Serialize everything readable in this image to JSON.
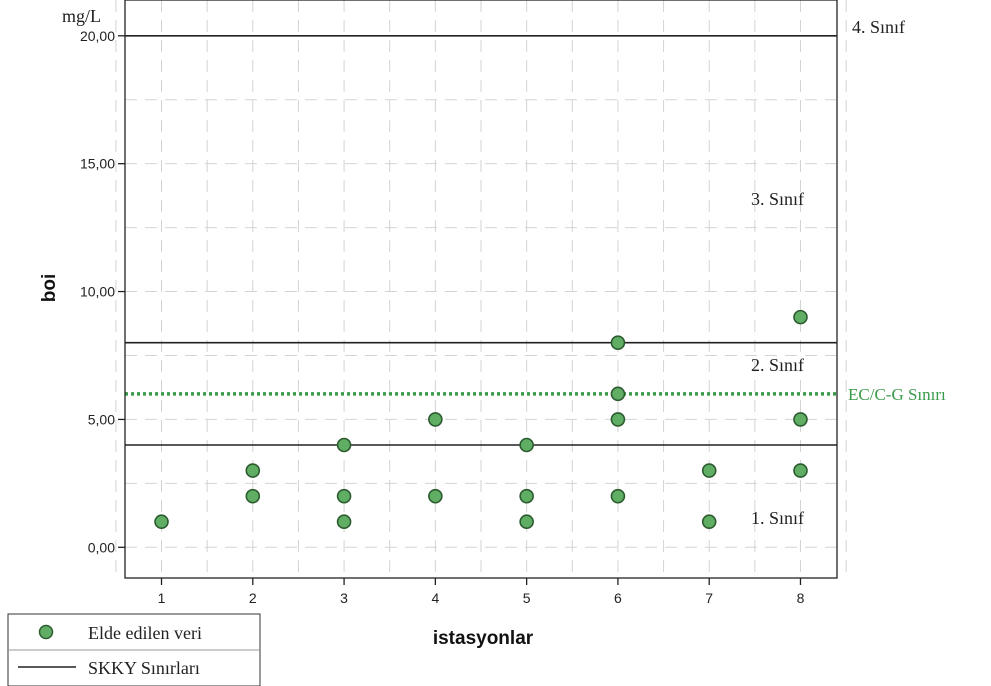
{
  "chart_data": {
    "type": "scatter",
    "xlabel": "istasyonlar",
    "ylabel": "boi",
    "unit": "mg/L",
    "xlim": [
      0.6,
      8.4
    ],
    "ylim": [
      -1.2,
      21.4
    ],
    "x_ticks": [
      1,
      2,
      3,
      4,
      5,
      6,
      7,
      8
    ],
    "y_ticks": [
      0,
      5,
      10,
      15,
      20
    ],
    "y_tick_labels": [
      "0,00",
      "5,00",
      "10,00",
      "15,00",
      "20,00"
    ],
    "grid": true,
    "series": [
      {
        "name": "Elde edilen veri",
        "color": "#5fae64",
        "points": [
          {
            "x": 1,
            "y": 1
          },
          {
            "x": 2,
            "y": 2
          },
          {
            "x": 2,
            "y": 3
          },
          {
            "x": 3,
            "y": 1
          },
          {
            "x": 3,
            "y": 2
          },
          {
            "x": 3,
            "y": 4
          },
          {
            "x": 4,
            "y": 2
          },
          {
            "x": 4,
            "y": 5
          },
          {
            "x": 5,
            "y": 1
          },
          {
            "x": 5,
            "y": 2
          },
          {
            "x": 5,
            "y": 4
          },
          {
            "x": 6,
            "y": 2
          },
          {
            "x": 6,
            "y": 5
          },
          {
            "x": 6,
            "y": 6
          },
          {
            "x": 6,
            "y": 8
          },
          {
            "x": 7,
            "y": 1
          },
          {
            "x": 7,
            "y": 3
          },
          {
            "x": 8,
            "y": 3
          },
          {
            "x": 8,
            "y": 5
          },
          {
            "x": 8,
            "y": 9
          }
        ]
      }
    ],
    "reference_lines": [
      {
        "name": "SKKY Sınırları",
        "y": 4,
        "style": "solid",
        "color": "#222222"
      },
      {
        "name": "SKKY Sınırları",
        "y": 8,
        "style": "solid",
        "color": "#222222"
      },
      {
        "name": "SKKY Sınırları",
        "y": 20,
        "style": "solid",
        "color": "#222222"
      },
      {
        "name": "EC/C-G Sınırı",
        "y": 6,
        "style": "dotted",
        "color": "#3a9a4a"
      }
    ],
    "annotations": [
      {
        "text": "4. Sınıf",
        "near_y": 20.8
      },
      {
        "text": "3. Sınıf",
        "near_y": 13.9
      },
      {
        "text": "2. Sınıf",
        "near_y": 7.1
      },
      {
        "text": "1. Sınıf",
        "near_y": 1.0
      }
    ],
    "ec_label": "EC/C-G Sınırı",
    "legend": {
      "position": "bottom-left",
      "entries": [
        {
          "label": "Elde edilen veri",
          "type": "marker"
        },
        {
          "label": "SKKY Sınırları",
          "type": "line"
        }
      ]
    }
  }
}
